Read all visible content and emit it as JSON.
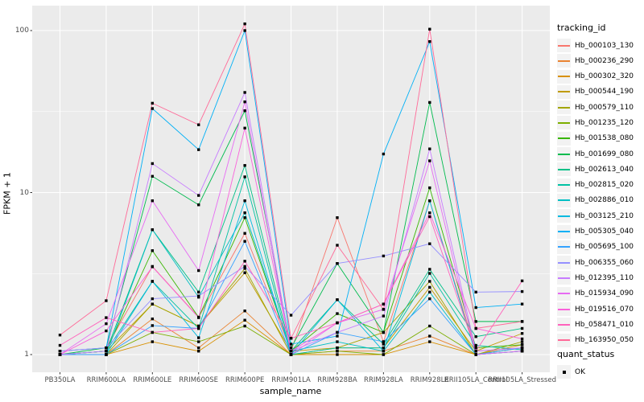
{
  "chart_data": {
    "type": "line",
    "title": "",
    "xlabel": "sample_name",
    "ylabel": "FPKM + 1",
    "y_scale": "log10",
    "ylim": [
      0.78,
      142
    ],
    "y_ticks": [
      1,
      10,
      100
    ],
    "grid": "on",
    "panel_bg": "#EBEBEB",
    "grid_color": "#FFFFFF",
    "point_color": "#000000",
    "point_shape": "square",
    "categories": [
      "PB350LA",
      "RRIM600LA",
      "RRIM600LE",
      "RRIM600SE",
      "RRIM600PE",
      "RRIM901LA",
      "RRIM928BA",
      "RRIM928LA",
      "RRIM928LE",
      "RRII105LA_Control",
      "RRII105LA_Stressed"
    ],
    "legend": {
      "title": "tracking_id",
      "position": "right"
    },
    "quant_legend": {
      "title": "quant_status",
      "items": [
        "OK"
      ]
    },
    "series": [
      {
        "name": "Hb_000103_130",
        "color": "#F8766D",
        "values": [
          1.05,
          1.1,
          3.5,
          1.7,
          5.6,
          1.05,
          7.0,
          1.2,
          8.9,
          1.05,
          1.1
        ]
      },
      {
        "name": "Hb_000236_290",
        "color": "#EA8331",
        "values": [
          1.0,
          1.0,
          1.66,
          1.1,
          1.86,
          1.0,
          1.05,
          1.05,
          1.3,
          1.0,
          1.05
        ]
      },
      {
        "name": "Hb_000302_320",
        "color": "#D89000",
        "values": [
          1.0,
          1.0,
          1.2,
          1.05,
          1.63,
          1.0,
          1.0,
          1.0,
          1.2,
          1.0,
          1.15
        ]
      },
      {
        "name": "Hb_000544_190",
        "color": "#C09B00",
        "values": [
          1.0,
          1.05,
          2.05,
          1.5,
          3.2,
          1.05,
          1.1,
          1.1,
          2.6,
          1.05,
          1.35
        ]
      },
      {
        "name": "Hb_000579_110",
        "color": "#A3A500",
        "values": [
          1.0,
          1.0,
          2.05,
          1.5,
          3.4,
          1.0,
          1.1,
          1.37,
          2.83,
          1.0,
          1.2
        ]
      },
      {
        "name": "Hb_001235_120",
        "color": "#7CAE00",
        "values": [
          1.0,
          1.0,
          1.37,
          1.2,
          1.5,
          1.0,
          1.05,
          1.0,
          1.5,
          1.0,
          1.1
        ]
      },
      {
        "name": "Hb_001538_080",
        "color": "#39B600",
        "values": [
          1.0,
          1.05,
          4.38,
          1.7,
          7.0,
          1.05,
          1.79,
          1.37,
          10.7,
          1.1,
          1.15
        ]
      },
      {
        "name": "Hb_001699_080",
        "color": "#00BB4E",
        "values": [
          1.0,
          1.1,
          12.6,
          8.4,
          32.0,
          1.1,
          3.65,
          1.37,
          36.0,
          1.6,
          1.6
        ]
      },
      {
        "name": "Hb_002613_040",
        "color": "#00C087",
        "values": [
          1.0,
          1.05,
          5.9,
          2.43,
          14.7,
          1.05,
          2.18,
          1.16,
          3.36,
          1.29,
          1.45
        ]
      },
      {
        "name": "Hb_002815_020",
        "color": "#00C1A3",
        "values": [
          1.0,
          1.05,
          2.83,
          1.45,
          12.5,
          1.0,
          1.1,
          1.1,
          3.17,
          1.14,
          1.07
        ]
      },
      {
        "name": "Hb_002886_010",
        "color": "#00BFC4",
        "values": [
          1.0,
          1.0,
          5.9,
          2.26,
          7.5,
          1.05,
          1.2,
          1.05,
          2.43,
          1.0,
          1.05
        ]
      },
      {
        "name": "Hb_003125_210",
        "color": "#00BAE0",
        "values": [
          1.0,
          1.0,
          2.83,
          1.27,
          8.9,
          1.0,
          2.18,
          1.05,
          8.9,
          1.0,
          1.05
        ]
      },
      {
        "name": "Hb_005305_040",
        "color": "#00B0F6",
        "values": [
          1.05,
          1.1,
          33.0,
          18.4,
          100.0,
          1.16,
          1.3,
          17.3,
          85.5,
          1.95,
          2.05
        ]
      },
      {
        "name": "Hb_005695_100",
        "color": "#35A2FF",
        "values": [
          1.0,
          1.0,
          1.51,
          1.45,
          5.0,
          1.0,
          1.37,
          1.2,
          2.21,
          1.0,
          1.1
        ]
      },
      {
        "name": "Hb_006355_060",
        "color": "#9590FF",
        "values": [
          1.05,
          1.1,
          2.21,
          2.3,
          3.5,
          1.75,
          3.65,
          4.06,
          4.83,
          2.43,
          2.45
        ]
      },
      {
        "name": "Hb_012395_110",
        "color": "#C77CFF",
        "values": [
          1.0,
          1.05,
          15.1,
          9.6,
          41.5,
          1.05,
          1.37,
          1.73,
          18.6,
          1.05,
          1.1
        ]
      },
      {
        "name": "Hb_015934_090",
        "color": "#E76BF3",
        "values": [
          1.0,
          1.55,
          8.9,
          3.3,
          36.3,
          1.0,
          1.57,
          1.9,
          15.7,
          1.0,
          1.05
        ]
      },
      {
        "name": "Hb_019516_070",
        "color": "#FA62DB",
        "values": [
          1.0,
          1.4,
          3.48,
          1.69,
          25.0,
          1.05,
          1.57,
          2.05,
          7.5,
          1.45,
          1.25
        ]
      },
      {
        "name": "Hb_058471_010",
        "color": "#FF62BC",
        "values": [
          1.14,
          1.69,
          1.37,
          1.45,
          3.77,
          1.26,
          1.57,
          2.05,
          7.1,
          1.05,
          2.85
        ]
      },
      {
        "name": "Hb_163950_050",
        "color": "#FF6A98",
        "values": [
          1.32,
          2.15,
          35.6,
          26.2,
          110.0,
          1.26,
          4.73,
          1.9,
          102.0,
          1.45,
          1.6
        ]
      }
    ]
  }
}
